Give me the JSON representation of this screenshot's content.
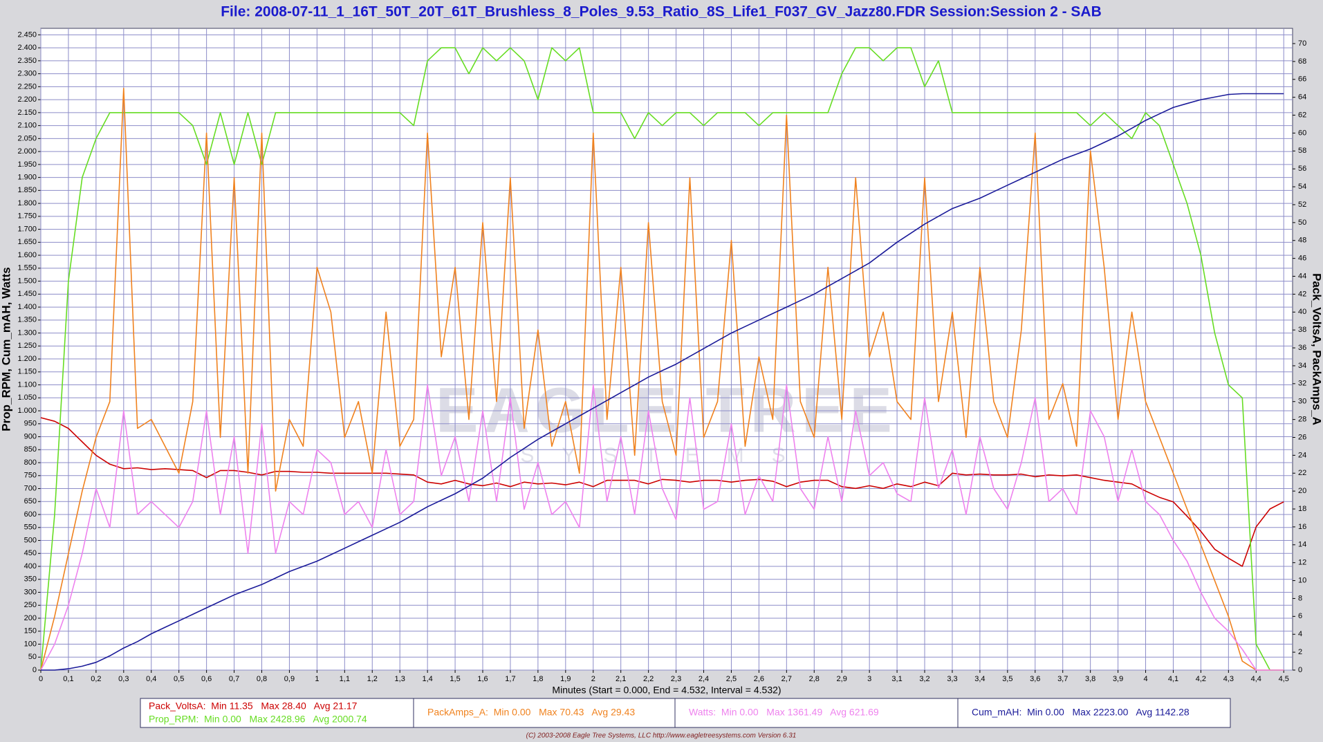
{
  "chart_data": {
    "type": "line",
    "title": "File: 2008-07-11_1_16T_50T_20T_61T_Brushless_8_Poles_9.53_Ratio_8S_Life1_F037_GV_Jazz80.FDR    Session:Session 2 - SAB",
    "x_label": "Minutes (Start = 0.000,  End = 4.532,  Interval =  4.532)",
    "y_label": "Prop_RPM, Cum_mAH, Watts",
    "y2_label": "Pack_VoltsA, PackAmps_A",
    "watermark": "EAGLE TREE",
    "watermark_sub": "SYSTEMS",
    "footer": "(C) 2003-2008 Eagle Tree Systems, LLC      http://www.eagletreesystems.com      Version 6.31",
    "grid": true,
    "xlim": [
      0,
      4.532
    ],
    "ylim": [
      0,
      2475
    ],
    "y2lim": [
      0,
      71.7
    ],
    "xticks": [
      0,
      {
        "value": 0.1,
        "label": "0,1"
      },
      {
        "value": 0.2,
        "label": "0,2"
      },
      {
        "value": 0.3,
        "label": "0,3"
      },
      {
        "value": 0.4,
        "label": "0,4"
      },
      {
        "value": 0.5,
        "label": "0,5"
      },
      {
        "value": 0.6,
        "label": "0,6"
      },
      {
        "value": 0.7,
        "label": "0,7"
      },
      {
        "value": 0.8,
        "label": "0,8"
      },
      {
        "value": 0.9,
        "label": "0,9"
      },
      1,
      {
        "value": 1.1,
        "label": "1,1"
      },
      {
        "value": 1.2,
        "label": "1,2"
      },
      {
        "value": 1.3,
        "label": "1,3"
      },
      {
        "value": 1.4,
        "label": "1,4"
      },
      {
        "value": 1.5,
        "label": "1,5"
      },
      {
        "value": 1.6,
        "label": "1,6"
      },
      {
        "value": 1.7,
        "label": "1,7"
      },
      {
        "value": 1.8,
        "label": "1,8"
      },
      {
        "value": 1.9,
        "label": "1,9"
      },
      2,
      {
        "value": 2.1,
        "label": "2,1"
      },
      {
        "value": 2.2,
        "label": "2,2"
      },
      {
        "value": 2.3,
        "label": "2,3"
      },
      {
        "value": 2.4,
        "label": "2,4"
      },
      {
        "value": 2.5,
        "label": "2,5"
      },
      {
        "value": 2.6,
        "label": "2,6"
      },
      {
        "value": 2.7,
        "label": "2,7"
      },
      {
        "value": 2.8,
        "label": "2,8"
      },
      {
        "value": 2.9,
        "label": "2,9"
      },
      3,
      {
        "value": 3.1,
        "label": "3,1"
      },
      {
        "value": 3.2,
        "label": "3,2"
      },
      {
        "value": 3.3,
        "label": "3,3"
      },
      {
        "value": 3.4,
        "label": "3,4"
      },
      {
        "value": 3.5,
        "label": "3,5"
      },
      {
        "value": 3.6,
        "label": "3,6"
      },
      {
        "value": 3.7,
        "label": "3,7"
      },
      {
        "value": 3.8,
        "label": "3,8"
      },
      {
        "value": 3.9,
        "label": "3,9"
      },
      4,
      {
        "value": 4.1,
        "label": "4,1"
      },
      {
        "value": 4.2,
        "label": "4,2"
      },
      {
        "value": 4.3,
        "label": "4,3"
      },
      {
        "value": 4.4,
        "label": "4,4"
      },
      {
        "value": 4.5,
        "label": "4,5"
      }
    ],
    "yticks": [
      0,
      50,
      100,
      150,
      200,
      250,
      300,
      350,
      400,
      450,
      500,
      550,
      600,
      650,
      700,
      750,
      800,
      850,
      900,
      950,
      {
        "value": 1000,
        "label": "1.000"
      },
      {
        "value": 1050,
        "label": "1.050"
      },
      {
        "value": 1100,
        "label": "1.100"
      },
      {
        "value": 1150,
        "label": "1.150"
      },
      {
        "value": 1200,
        "label": "1.200"
      },
      {
        "value": 1250,
        "label": "1.250"
      },
      {
        "value": 1300,
        "label": "1.300"
      },
      {
        "value": 1350,
        "label": "1.350"
      },
      {
        "value": 1400,
        "label": "1.400"
      },
      {
        "value": 1450,
        "label": "1.450"
      },
      {
        "value": 1500,
        "label": "1.500"
      },
      {
        "value": 1550,
        "label": "1.550"
      },
      {
        "value": 1600,
        "label": "1.600"
      },
      {
        "value": 1650,
        "label": "1.650"
      },
      {
        "value": 1700,
        "label": "1.700"
      },
      {
        "value": 1750,
        "label": "1.750"
      },
      {
        "value": 1800,
        "label": "1.800"
      },
      {
        "value": 1850,
        "label": "1.850"
      },
      {
        "value": 1900,
        "label": "1.900"
      },
      {
        "value": 1950,
        "label": "1.950"
      },
      {
        "value": 2000,
        "label": "2.000"
      },
      {
        "value": 2050,
        "label": "2.050"
      },
      {
        "value": 2100,
        "label": "2.100"
      },
      {
        "value": 2150,
        "label": "2.150"
      },
      {
        "value": 2200,
        "label": "2.200"
      },
      {
        "value": 2250,
        "label": "2.250"
      },
      {
        "value": 2300,
        "label": "2.300"
      },
      {
        "value": 2350,
        "label": "2.350"
      },
      {
        "value": 2400,
        "label": "2.400"
      },
      {
        "value": 2450,
        "label": "2.450"
      }
    ],
    "y2ticks": [
      0,
      2,
      4,
      6,
      8,
      10,
      12,
      14,
      16,
      18,
      20,
      22,
      24,
      26,
      28,
      30,
      32,
      34,
      36,
      38,
      40,
      42,
      44,
      46,
      48,
      50,
      52,
      54,
      56,
      58,
      60,
      62,
      64,
      66,
      68,
      70
    ],
    "x": [
      0,
      0.05,
      0.1,
      0.15,
      0.2,
      0.25,
      0.3,
      0.35,
      0.4,
      0.45,
      0.5,
      0.55,
      0.6,
      0.65,
      0.7,
      0.75,
      0.8,
      0.85,
      0.9,
      0.95,
      1,
      1.05,
      1.1,
      1.15,
      1.2,
      1.25,
      1.3,
      1.35,
      1.4,
      1.45,
      1.5,
      1.55,
      1.6,
      1.65,
      1.7,
      1.75,
      1.8,
      1.85,
      1.9,
      1.95,
      2,
      2.05,
      2.1,
      2.15,
      2.2,
      2.25,
      2.3,
      2.35,
      2.4,
      2.45,
      2.5,
      2.55,
      2.6,
      2.65,
      2.7,
      2.75,
      2.8,
      2.85,
      2.9,
      2.95,
      3,
      3.05,
      3.1,
      3.15,
      3.2,
      3.25,
      3.3,
      3.35,
      3.4,
      3.45,
      3.5,
      3.55,
      3.6,
      3.65,
      3.7,
      3.75,
      3.8,
      3.85,
      3.9,
      3.95,
      4,
      4.05,
      4.1,
      4.15,
      4.2,
      4.25,
      4.3,
      4.35,
      4.4,
      4.45,
      4.5
    ],
    "series": [
      {
        "name": "Pack_VoltsA",
        "summary": ":  Min 11.35   Max 28.40   Avg 21.17",
        "color": "#cc0000",
        "axis": "y2",
        "values": [
          28.2,
          27.8,
          27,
          25.5,
          24,
          23,
          22.5,
          22.6,
          22.4,
          22.5,
          22.4,
          22.3,
          21.5,
          22.3,
          22.3,
          22.1,
          21.8,
          22.2,
          22.2,
          22.1,
          22.1,
          22,
          22,
          22,
          22,
          22,
          21.9,
          21.8,
          21,
          20.8,
          21.2,
          20.8,
          20.6,
          20.9,
          20.5,
          21,
          20.8,
          20.9,
          20.7,
          21,
          20.5,
          21.2,
          21.2,
          21.2,
          20.8,
          21.3,
          21.2,
          21,
          21.2,
          21.2,
          21,
          21.2,
          21.3,
          21.1,
          20.5,
          21,
          21.2,
          21.2,
          20.5,
          20.3,
          20.6,
          20.3,
          20.8,
          20.5,
          21,
          20.6,
          22,
          21.8,
          21.9,
          21.8,
          21.8,
          21.9,
          21.6,
          21.8,
          21.7,
          21.8,
          21.5,
          21.2,
          21,
          20.8,
          20,
          19.3,
          18.8,
          17.2,
          15.5,
          13.5,
          12.5,
          11.6,
          16,
          18,
          18.8
        ]
      },
      {
        "name": "Prop_RPM",
        "summary": ":  Min 0.00   Max 2428.96   Avg 2000.74",
        "color": "#66dd22",
        "values": [
          0,
          600,
          1500,
          1900,
          2050,
          2150,
          2150,
          2150,
          2150,
          2150,
          2150,
          2100,
          1950,
          2150,
          1950,
          2150,
          1950,
          2150,
          2150,
          2150,
          2150,
          2150,
          2150,
          2150,
          2150,
          2150,
          2150,
          2100,
          2350,
          2400,
          2400,
          2300,
          2400,
          2350,
          2400,
          2350,
          2200,
          2400,
          2350,
          2400,
          2150,
          2150,
          2150,
          2050,
          2150,
          2100,
          2150,
          2150,
          2100,
          2150,
          2150,
          2150,
          2100,
          2150,
          2150,
          2150,
          2150,
          2150,
          2300,
          2400,
          2400,
          2350,
          2400,
          2400,
          2250,
          2350,
          2150,
          2150,
          2150,
          2150,
          2150,
          2150,
          2150,
          2150,
          2150,
          2150,
          2100,
          2150,
          2100,
          2050,
          2150,
          2100,
          1950,
          1800,
          1600,
          1300,
          1100,
          1050,
          100,
          0,
          0
        ]
      },
      {
        "name": "PackAmps_A",
        "summary": ":  Min 0.00   Max 70.43   Avg 29.43",
        "color": "#f0821e",
        "axis": "y2",
        "values": [
          0,
          6,
          13,
          20,
          26,
          30,
          65,
          27,
          28,
          25,
          22,
          30,
          60,
          26,
          55,
          22,
          60,
          20,
          28,
          25,
          45,
          40,
          26,
          30,
          22,
          40,
          25,
          28,
          60,
          35,
          45,
          28,
          50,
          30,
          55,
          27,
          38,
          25,
          30,
          22,
          60,
          28,
          45,
          24,
          50,
          30,
          24,
          55,
          26,
          30,
          48,
          25,
          35,
          28,
          62,
          30,
          26,
          45,
          28,
          55,
          35,
          40,
          30,
          28,
          55,
          30,
          40,
          26,
          45,
          30,
          26,
          38,
          60,
          28,
          32,
          25,
          58,
          45,
          28,
          40,
          30,
          26,
          22,
          18,
          14,
          10,
          6,
          1,
          0,
          0,
          0
        ]
      },
      {
        "name": "Watts",
        "summary": ":  Min 0.00   Max 1361.49   Avg 621.69",
        "color": "#ee82ee",
        "values": [
          0,
          100,
          250,
          450,
          700,
          550,
          1000,
          600,
          650,
          600,
          550,
          650,
          1000,
          600,
          900,
          450,
          950,
          450,
          650,
          600,
          850,
          800,
          600,
          650,
          550,
          850,
          600,
          650,
          1100,
          750,
          900,
          650,
          1000,
          650,
          1050,
          620,
          800,
          600,
          650,
          550,
          1100,
          650,
          900,
          600,
          1000,
          700,
          580,
          1050,
          620,
          650,
          950,
          600,
          750,
          650,
          1100,
          700,
          620,
          900,
          650,
          1000,
          750,
          800,
          680,
          650,
          1050,
          700,
          850,
          600,
          900,
          700,
          620,
          800,
          1050,
          650,
          700,
          600,
          1000,
          900,
          650,
          850,
          650,
          600,
          500,
          420,
          300,
          200,
          150,
          80,
          0,
          0,
          0
        ]
      },
      {
        "name": "Cum_mAH",
        "summary": ":  Min 0.00   Max 2223.00   Avg 1142.28",
        "color": "#1a1a99",
        "values": [
          0,
          0,
          5,
          15,
          30,
          55,
          85,
          110,
          140,
          165,
          190,
          215,
          240,
          265,
          290,
          310,
          330,
          355,
          380,
          400,
          420,
          445,
          470,
          495,
          520,
          545,
          570,
          600,
          630,
          655,
          680,
          710,
          740,
          780,
          820,
          855,
          890,
          920,
          950,
          980,
          1010,
          1040,
          1070,
          1100,
          1130,
          1155,
          1180,
          1210,
          1240,
          1270,
          1300,
          1325,
          1350,
          1375,
          1400,
          1425,
          1450,
          1480,
          1510,
          1540,
          1570,
          1610,
          1650,
          1685,
          1720,
          1750,
          1780,
          1800,
          1820,
          1845,
          1870,
          1895,
          1920,
          1945,
          1970,
          1990,
          2010,
          2035,
          2060,
          2090,
          2120,
          2145,
          2170,
          2185,
          2200,
          2210,
          2220,
          2223,
          2223,
          2223,
          2223
        ]
      }
    ]
  }
}
